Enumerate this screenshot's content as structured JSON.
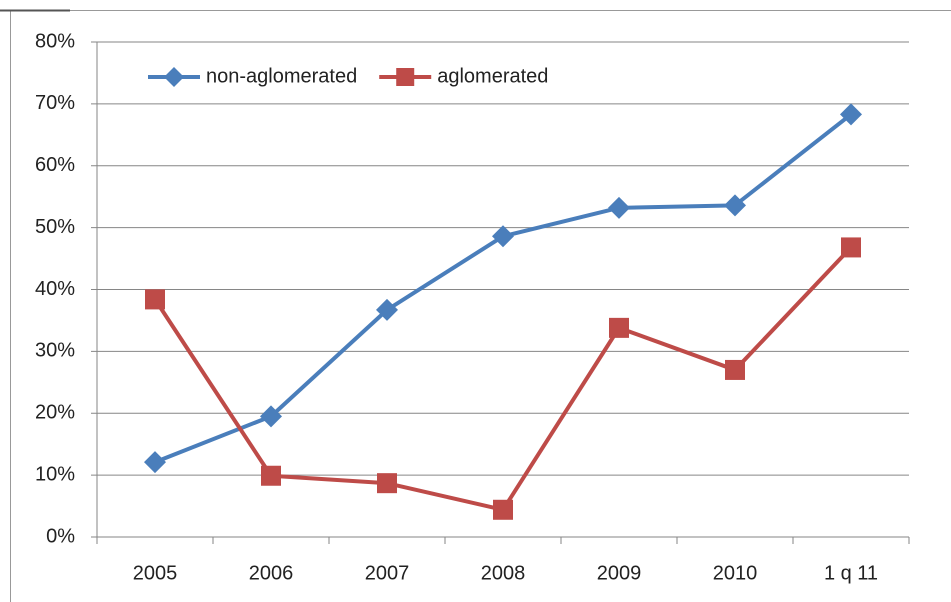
{
  "chart_data": {
    "type": "line",
    "categories": [
      "2005",
      "2006",
      "2007",
      "2008",
      "2009",
      "2010",
      "1 q 11"
    ],
    "series": [
      {
        "name": "non-aglomerated",
        "color": "#4a7ebb",
        "marker": "diamond",
        "values": [
          12.1,
          19.5,
          36.7,
          48.6,
          53.2,
          53.6,
          68.3
        ]
      },
      {
        "name": "aglomerated",
        "color": "#be4b48",
        "marker": "square",
        "values": [
          38.4,
          9.9,
          8.7,
          4.4,
          33.8,
          27,
          46.8
        ]
      }
    ],
    "ylim": [
      0,
      80
    ],
    "yticks": [
      {
        "value": 0,
        "label": "0%"
      },
      {
        "value": 10,
        "label": "10%"
      },
      {
        "value": 20,
        "label": "20%"
      },
      {
        "value": 30,
        "label": "30%"
      },
      {
        "value": 40,
        "label": "40%"
      },
      {
        "value": 50,
        "label": "50%"
      },
      {
        "value": 60,
        "label": "60%"
      },
      {
        "value": 70,
        "label": "70%"
      },
      {
        "value": 80,
        "label": "80%"
      }
    ],
    "grid": true,
    "legend": "top-left"
  }
}
